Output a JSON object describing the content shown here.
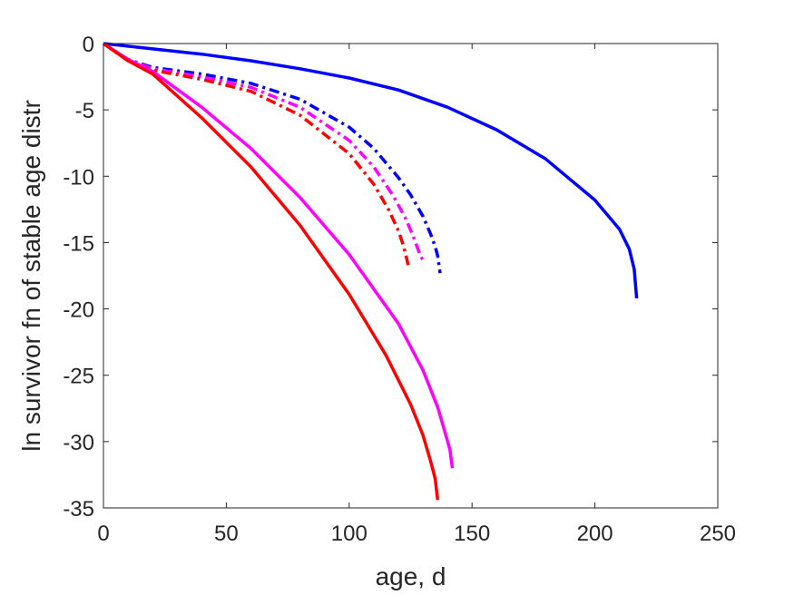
{
  "chart_data": {
    "type": "line",
    "title": "",
    "xlabel": "age, d",
    "ylabel": "ln survivor fn of stable age distr",
    "xlim": [
      0,
      250
    ],
    "ylim": [
      -35,
      0
    ],
    "xticks": [
      0,
      50,
      100,
      150,
      200,
      250
    ],
    "yticks": [
      0,
      -5,
      -10,
      -15,
      -20,
      -25,
      -30,
      -35
    ],
    "grid": false,
    "legend": "none",
    "series": [
      {
        "color": "#0000ff",
        "style": "solid",
        "x": [
          0,
          20,
          40,
          60,
          80,
          100,
          120,
          140,
          160,
          180,
          200,
          210,
          214,
          216,
          217
        ],
        "y": [
          0,
          -0.4,
          -0.8,
          -1.3,
          -1.9,
          -2.6,
          -3.5,
          -4.8,
          -6.5,
          -8.7,
          -11.8,
          -14.0,
          -15.5,
          -17.0,
          -19.2
        ]
      },
      {
        "color": "#0000ff",
        "style": "dashdot",
        "x": [
          0,
          10,
          20,
          40,
          60,
          80,
          100,
          110,
          120,
          125,
          130,
          133,
          135,
          136,
          137
        ],
        "y": [
          0,
          -1.2,
          -1.8,
          -2.3,
          -3.0,
          -4.2,
          -6.3,
          -7.9,
          -10.1,
          -11.4,
          -13.0,
          -14.3,
          -15.3,
          -16.0,
          -17.3
        ]
      },
      {
        "color": "#ff00ff",
        "style": "dashdot",
        "x": [
          0,
          10,
          20,
          40,
          60,
          80,
          100,
          110,
          118,
          123,
          126,
          128,
          129,
          130
        ],
        "y": [
          0,
          -1.2,
          -1.9,
          -2.5,
          -3.3,
          -4.8,
          -7.3,
          -9.3,
          -11.5,
          -13.2,
          -14.5,
          -15.5,
          -16.0,
          -16.3
        ]
      },
      {
        "color": "#ff0000",
        "style": "dashdot",
        "x": [
          0,
          10,
          20,
          40,
          60,
          80,
          100,
          110,
          116,
          120,
          122,
          123,
          124
        ],
        "y": [
          0,
          -1.3,
          -2.0,
          -2.7,
          -3.6,
          -5.4,
          -8.3,
          -10.6,
          -12.5,
          -14.1,
          -15.2,
          -15.9,
          -16.7
        ]
      },
      {
        "color": "#ff00ff",
        "style": "solid",
        "x": [
          0,
          10,
          20,
          40,
          60,
          80,
          100,
          120,
          130,
          136,
          139,
          141,
          142
        ],
        "y": [
          0,
          -1.2,
          -2.1,
          -4.8,
          -7.9,
          -11.6,
          -15.9,
          -21.1,
          -24.6,
          -27.4,
          -29.3,
          -30.6,
          -32.0
        ]
      },
      {
        "color": "#ff0000",
        "style": "solid",
        "x": [
          0,
          10,
          20,
          40,
          60,
          80,
          100,
          115,
          125,
          130,
          133,
          135,
          136
        ],
        "y": [
          0,
          -1.3,
          -2.3,
          -5.6,
          -9.3,
          -13.7,
          -18.9,
          -23.5,
          -27.2,
          -29.5,
          -31.4,
          -32.8,
          -34.4
        ]
      }
    ]
  }
}
